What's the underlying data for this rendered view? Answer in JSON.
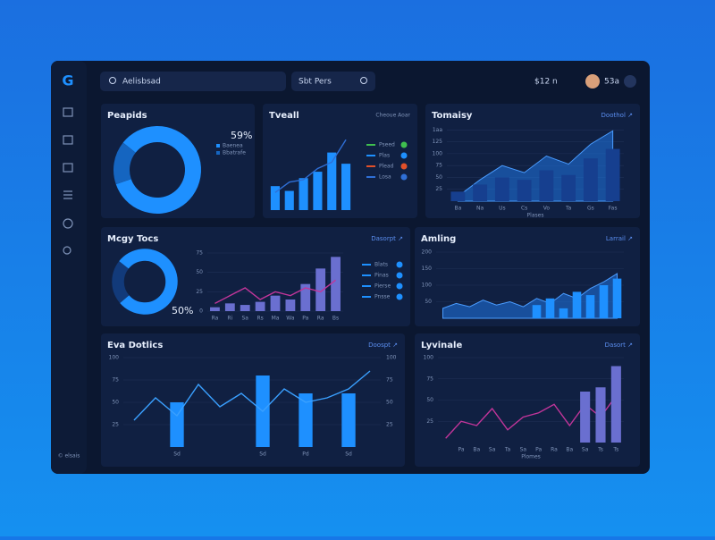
{
  "header": {
    "logo": "G",
    "search": "Aelisbsad",
    "filter": "Sbt Pers",
    "stat": "$12 n",
    "user": "53a",
    "footer": "© elsais"
  },
  "chart_data": [
    {
      "type": "donut",
      "title": "Peapids",
      "center_label": "59%",
      "categories": [
        "Baenea",
        "Bbatrafe"
      ],
      "values": [
        84,
        16
      ],
      "colors": [
        "#1e90ff",
        "#1565c0"
      ]
    },
    {
      "type": "combo",
      "title": "Tveall",
      "subtitle": "Cheoue Aoar",
      "categories": [
        null,
        null,
        null,
        null,
        null,
        null
      ],
      "series": [
        {
          "type": "bar",
          "color": "#1e90ff",
          "values": [
            30,
            24,
            40,
            48,
            72,
            58
          ]
        },
        {
          "type": "line",
          "color": "#2f6fd6",
          "values": [
            22,
            35,
            38,
            52,
            60,
            88
          ]
        }
      ],
      "legend": [
        {
          "name": "Pseed",
          "color": "#3fbf4f"
        },
        {
          "name": "Plas",
          "color": "#1e90ff"
        },
        {
          "name": "Plead",
          "color": "#e0502a"
        },
        {
          "name": "Losa",
          "color": "#2f6fd6"
        }
      ]
    },
    {
      "type": "combo",
      "title": "Tomaisy",
      "link": "Doothol ↗",
      "x_label": "Plases",
      "categories": [
        "Ba",
        "Na",
        "Us",
        "Cs",
        "Vo",
        "Ta",
        "Gs",
        "Fas"
      ],
      "ylim": [
        0,
        160
      ],
      "yticks": [
        {
          "value": 25,
          "label": "25"
        },
        {
          "value": 50,
          "label": "50"
        },
        {
          "value": 75,
          "label": "75"
        },
        {
          "value": 100,
          "label": "100"
        },
        {
          "value": 125,
          "label": "125"
        },
        {
          "value": 150,
          "label": "1aa"
        }
      ],
      "grid": true,
      "series": [
        {
          "type": "area",
          "color": "#1e6fd9",
          "values": [
            10,
            45,
            75,
            60,
            95,
            78,
            120,
            148
          ]
        },
        {
          "type": "bar",
          "color": "#163f8f",
          "values": [
            20,
            35,
            50,
            45,
            65,
            55,
            90,
            110
          ]
        }
      ]
    },
    {
      "type": "donut",
      "title": "Mcgy Tocs",
      "center_label": "50%",
      "categories": [
        null,
        null
      ],
      "values": [
        78,
        22
      ],
      "colors": [
        "#1e90ff",
        "#123a7a"
      ]
    },
    {
      "type": "combo",
      "link": "Dasorpt ↗",
      "categories": [
        "Ra",
        "Ri",
        "Sa",
        "Rs",
        "Ma",
        "Wa",
        "Pa",
        "Ra",
        "Bs"
      ],
      "ylim": [
        0,
        75
      ],
      "yticks": [
        0,
        25,
        50,
        75
      ],
      "grid": true,
      "series": [
        {
          "type": "bar",
          "color": "#6a6fd0",
          "values": [
            5,
            10,
            8,
            12,
            20,
            15,
            35,
            55,
            70
          ]
        },
        {
          "type": "line",
          "color": "#c2359a",
          "values": [
            10,
            20,
            30,
            15,
            25,
            20,
            30,
            25,
            40
          ]
        }
      ],
      "legend": [
        {
          "name": "Blats",
          "color": "#1e90ff"
        },
        {
          "name": "Pinas",
          "color": "#1e90ff"
        },
        {
          "name": "Pierse",
          "color": "#1e90ff"
        },
        {
          "name": "Pnsse",
          "color": "#1e90ff"
        }
      ]
    },
    {
      "type": "combo",
      "title": "Amling",
      "link": "Larrail ↗",
      "categories": [
        null,
        null,
        null,
        null,
        null,
        null,
        null,
        null,
        null,
        null,
        null,
        null,
        null,
        null
      ],
      "ylim": [
        0,
        200
      ],
      "yticks": [
        50,
        100,
        150,
        200
      ],
      "grid": true,
      "series": [
        {
          "type": "area",
          "color": "#1e6fd9",
          "values": [
            30,
            45,
            35,
            55,
            40,
            50,
            35,
            60,
            45,
            75,
            60,
            90,
            110,
            135
          ]
        },
        {
          "type": "bar",
          "color": "#1e90ff",
          "values": [
            null,
            null,
            null,
            null,
            null,
            null,
            null,
            40,
            60,
            30,
            80,
            70,
            100,
            120
          ]
        }
      ]
    },
    {
      "type": "combo",
      "title": "Eva Dotlics",
      "link": "Doospt ↗",
      "categories": [
        null,
        null,
        "Sd",
        null,
        null,
        null,
        "Sd",
        null,
        "Pd",
        null,
        "Sd",
        null
      ],
      "ylim": [
        0,
        100
      ],
      "yticks": [
        25,
        50,
        75,
        100
      ],
      "y2lim": [
        0,
        100
      ],
      "y2ticks": [
        25,
        50,
        75,
        100
      ],
      "grid": true,
      "series": [
        {
          "type": "bar",
          "color": "#1e90ff",
          "values": [
            null,
            null,
            50,
            null,
            null,
            null,
            80,
            null,
            60,
            null,
            60,
            null
          ]
        },
        {
          "type": "line",
          "color": "#3aa0ff",
          "values": [
            30,
            55,
            35,
            70,
            45,
            60,
            40,
            65,
            50,
            55,
            65,
            85
          ]
        }
      ]
    },
    {
      "type": "combo",
      "title": "Lyvinale",
      "link": "Dasort ↗",
      "x_label": "Plomes",
      "categories": [
        null,
        "Pa",
        "Ba",
        "Sa",
        "Ta",
        "Sa",
        "Pa",
        "Ra",
        "Ba",
        "Sa",
        "Ts",
        "Ts"
      ],
      "ylim": [
        0,
        100
      ],
      "yticks": [
        25,
        50,
        75,
        100
      ],
      "grid": true,
      "series": [
        {
          "type": "line",
          "color": "#c2359a",
          "values": [
            5,
            25,
            20,
            40,
            15,
            30,
            35,
            45,
            20,
            45,
            30,
            55
          ]
        },
        {
          "type": "bar",
          "color": "#6a6fd0",
          "values": [
            null,
            null,
            null,
            null,
            null,
            null,
            null,
            null,
            null,
            60,
            65,
            90
          ]
        }
      ]
    }
  ]
}
